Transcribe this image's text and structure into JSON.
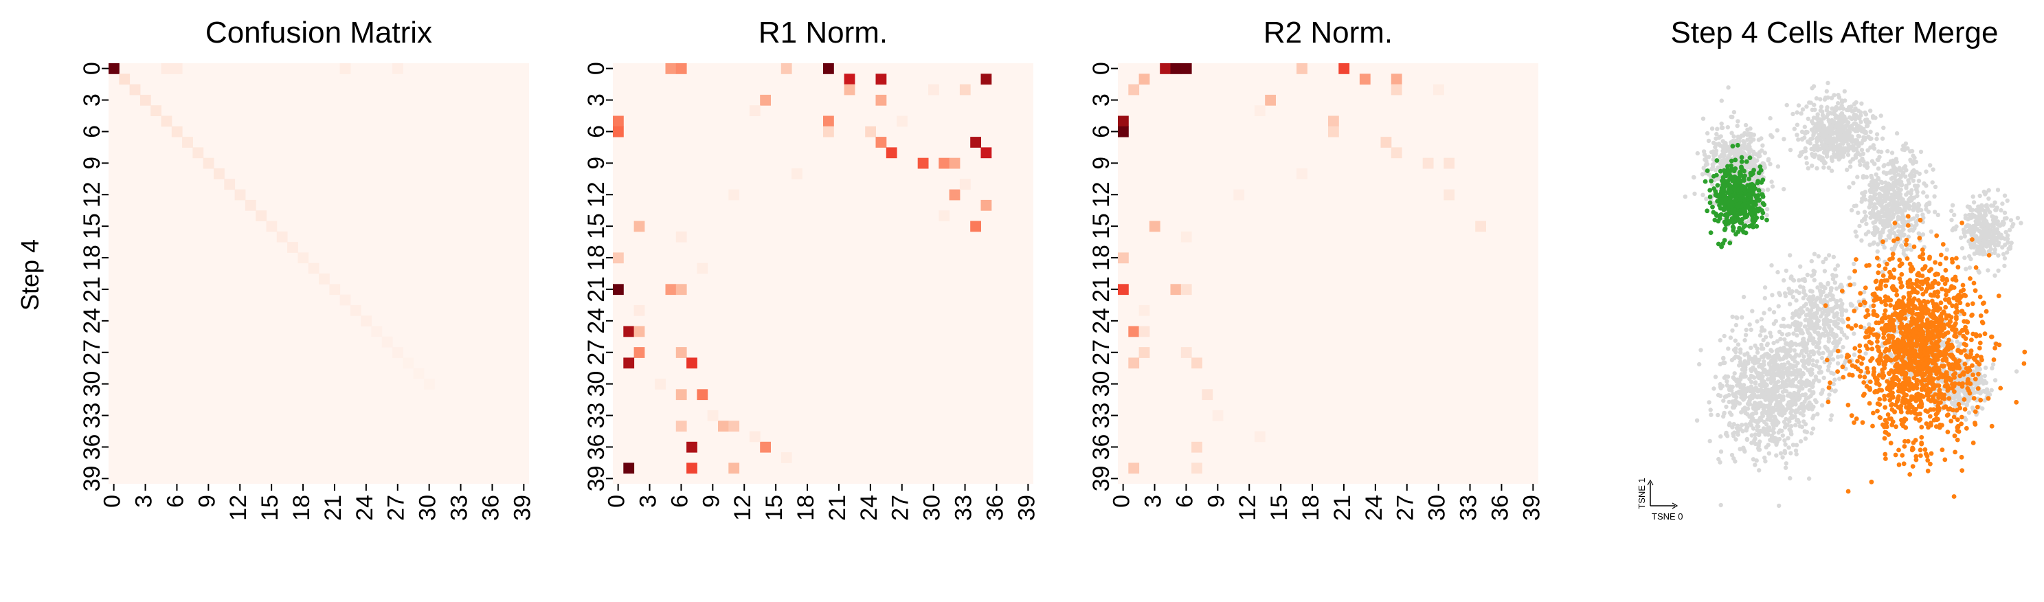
{
  "figure": {
    "ylabel": "Step 4"
  },
  "chart_data": [
    {
      "type": "heatmap",
      "title": "Confusion Matrix",
      "xlabel": "",
      "ylabel": "Step 4",
      "x_ticks": [
        "0",
        "3",
        "6",
        "9",
        "12",
        "15",
        "18",
        "21",
        "24",
        "27",
        "30",
        "33",
        "36",
        "39"
      ],
      "y_ticks": [
        "0",
        "3",
        "6",
        "9",
        "12",
        "15",
        "18",
        "21",
        "24",
        "27",
        "30",
        "33",
        "36",
        "39"
      ],
      "n_rows": 40,
      "n_cols": 40,
      "colormap": "Reds",
      "vmax": 1,
      "cells": [
        [
          0,
          0,
          1.0
        ],
        [
          1,
          1,
          0.12
        ],
        [
          2,
          2,
          0.1
        ],
        [
          3,
          3,
          0.1
        ],
        [
          4,
          4,
          0.09
        ],
        [
          5,
          5,
          0.09
        ],
        [
          6,
          6,
          0.09
        ],
        [
          7,
          7,
          0.08
        ],
        [
          8,
          8,
          0.08
        ],
        [
          9,
          9,
          0.08
        ],
        [
          10,
          10,
          0.08
        ],
        [
          11,
          11,
          0.07
        ],
        [
          12,
          12,
          0.07
        ],
        [
          13,
          13,
          0.07
        ],
        [
          14,
          14,
          0.07
        ],
        [
          15,
          15,
          0.06
        ],
        [
          16,
          16,
          0.06
        ],
        [
          17,
          17,
          0.06
        ],
        [
          18,
          18,
          0.05
        ],
        [
          19,
          19,
          0.05
        ],
        [
          20,
          20,
          0.05
        ],
        [
          21,
          21,
          0.05
        ],
        [
          22,
          22,
          0.04
        ],
        [
          23,
          23,
          0.04
        ],
        [
          24,
          24,
          0.04
        ],
        [
          25,
          25,
          0.03
        ],
        [
          26,
          26,
          0.03
        ],
        [
          27,
          27,
          0.03
        ],
        [
          28,
          28,
          0.02
        ],
        [
          29,
          29,
          0.02
        ],
        [
          30,
          30,
          0.02
        ],
        [
          0,
          5,
          0.06
        ],
        [
          0,
          6,
          0.06
        ],
        [
          0,
          22,
          0.05
        ],
        [
          0,
          27,
          0.04
        ]
      ]
    },
    {
      "type": "heatmap",
      "title": "R1 Norm.",
      "x_ticks": [
        "0",
        "3",
        "6",
        "9",
        "12",
        "15",
        "18",
        "21",
        "24",
        "27",
        "30",
        "33",
        "36",
        "39"
      ],
      "y_ticks": [
        "0",
        "3",
        "6",
        "9",
        "12",
        "15",
        "18",
        "21",
        "24",
        "27",
        "30",
        "33",
        "36",
        "39"
      ],
      "n_rows": 40,
      "n_cols": 40,
      "colormap": "Reds",
      "vmax": 1,
      "cells": [
        [
          0,
          5,
          0.35
        ],
        [
          0,
          6,
          0.4
        ],
        [
          0,
          16,
          0.2
        ],
        [
          0,
          20,
          1.0
        ],
        [
          1,
          22,
          0.75
        ],
        [
          1,
          25,
          0.8
        ],
        [
          1,
          35,
          0.9
        ],
        [
          2,
          22,
          0.25
        ],
        [
          2,
          33,
          0.15
        ],
        [
          3,
          14,
          0.3
        ],
        [
          3,
          25,
          0.3
        ],
        [
          5,
          0,
          0.45
        ],
        [
          5,
          20,
          0.4
        ],
        [
          6,
          0,
          0.5
        ],
        [
          6,
          20,
          0.15
        ],
        [
          6,
          24,
          0.15
        ],
        [
          7,
          25,
          0.4
        ],
        [
          7,
          34,
          0.85
        ],
        [
          8,
          26,
          0.6
        ],
        [
          8,
          35,
          0.75
        ],
        [
          9,
          29,
          0.55
        ],
        [
          9,
          31,
          0.4
        ],
        [
          9,
          32,
          0.3
        ],
        [
          12,
          32,
          0.35
        ],
        [
          13,
          35,
          0.3
        ],
        [
          15,
          2,
          0.25
        ],
        [
          15,
          34,
          0.45
        ],
        [
          18,
          0,
          0.2
        ],
        [
          21,
          0,
          1.0
        ],
        [
          21,
          5,
          0.35
        ],
        [
          21,
          6,
          0.25
        ],
        [
          25,
          1,
          0.85
        ],
        [
          25,
          2,
          0.25
        ],
        [
          27,
          2,
          0.4
        ],
        [
          27,
          6,
          0.25
        ],
        [
          28,
          1,
          0.85
        ],
        [
          28,
          7,
          0.65
        ],
        [
          31,
          6,
          0.25
        ],
        [
          31,
          8,
          0.45
        ],
        [
          34,
          6,
          0.2
        ],
        [
          34,
          10,
          0.25
        ],
        [
          34,
          11,
          0.2
        ],
        [
          36,
          14,
          0.4
        ],
        [
          36,
          7,
          0.85
        ],
        [
          38,
          1,
          1.0
        ],
        [
          38,
          7,
          0.6
        ],
        [
          38,
          11,
          0.25
        ],
        [
          4,
          13,
          0.06
        ],
        [
          10,
          17,
          0.05
        ],
        [
          12,
          11,
          0.05
        ],
        [
          16,
          6,
          0.06
        ],
        [
          19,
          8,
          0.05
        ],
        [
          23,
          2,
          0.06
        ],
        [
          30,
          4,
          0.05
        ],
        [
          33,
          9,
          0.05
        ],
        [
          35,
          13,
          0.06
        ],
        [
          37,
          16,
          0.05
        ],
        [
          2,
          30,
          0.06
        ],
        [
          5,
          27,
          0.05
        ],
        [
          11,
          33,
          0.06
        ],
        [
          14,
          31,
          0.05
        ]
      ]
    },
    {
      "type": "heatmap",
      "title": "R2 Norm.",
      "x_ticks": [
        "0",
        "3",
        "6",
        "9",
        "12",
        "15",
        "18",
        "21",
        "24",
        "27",
        "30",
        "33",
        "36",
        "39"
      ],
      "y_ticks": [
        "0",
        "3",
        "6",
        "9",
        "12",
        "15",
        "18",
        "21",
        "24",
        "27",
        "30",
        "33",
        "36",
        "39"
      ],
      "n_rows": 40,
      "n_cols": 40,
      "colormap": "Reds",
      "vmax": 1,
      "cells": [
        [
          0,
          4,
          0.85
        ],
        [
          0,
          5,
          1.0
        ],
        [
          0,
          6,
          1.0
        ],
        [
          0,
          17,
          0.2
        ],
        [
          0,
          21,
          0.6
        ],
        [
          1,
          2,
          0.25
        ],
        [
          1,
          23,
          0.35
        ],
        [
          1,
          26,
          0.3
        ],
        [
          2,
          1,
          0.2
        ],
        [
          2,
          26,
          0.15
        ],
        [
          3,
          14,
          0.25
        ],
        [
          5,
          0,
          0.9
        ],
        [
          5,
          20,
          0.2
        ],
        [
          6,
          0,
          1.0
        ],
        [
          6,
          20,
          0.15
        ],
        [
          7,
          25,
          0.15
        ],
        [
          8,
          26,
          0.12
        ],
        [
          9,
          29,
          0.1
        ],
        [
          9,
          31,
          0.1
        ],
        [
          12,
          31,
          0.08
        ],
        [
          15,
          3,
          0.25
        ],
        [
          15,
          34,
          0.1
        ],
        [
          18,
          0,
          0.2
        ],
        [
          21,
          0,
          0.6
        ],
        [
          21,
          5,
          0.25
        ],
        [
          21,
          6,
          0.12
        ],
        [
          25,
          1,
          0.4
        ],
        [
          25,
          2,
          0.1
        ],
        [
          27,
          2,
          0.15
        ],
        [
          27,
          6,
          0.1
        ],
        [
          28,
          1,
          0.2
        ],
        [
          28,
          7,
          0.15
        ],
        [
          31,
          8,
          0.1
        ],
        [
          36,
          7,
          0.15
        ],
        [
          38,
          1,
          0.2
        ],
        [
          38,
          7,
          0.12
        ],
        [
          4,
          13,
          0.04
        ],
        [
          10,
          17,
          0.04
        ],
        [
          12,
          11,
          0.04
        ],
        [
          16,
          6,
          0.05
        ],
        [
          23,
          2,
          0.05
        ],
        [
          33,
          9,
          0.04
        ],
        [
          35,
          13,
          0.04
        ],
        [
          2,
          30,
          0.05
        ]
      ]
    },
    {
      "type": "scatter",
      "title": "Step 4 Cells After Merge",
      "xlabel": "TSNE 0",
      "ylabel": "TSNE 1",
      "series": [
        {
          "color": "#d9d9d9",
          "clusters": [
            [
              0.28,
              0.22,
              0.06,
              0.08,
              700
            ],
            [
              0.52,
              0.13,
              0.07,
              0.06,
              500
            ],
            [
              0.88,
              0.35,
              0.05,
              0.06,
              300
            ],
            [
              0.72,
              0.62,
              0.06,
              0.06,
              400
            ],
            [
              0.36,
              0.72,
              0.1,
              0.12,
              900
            ],
            [
              0.48,
              0.55,
              0.08,
              0.1,
              400
            ],
            [
              0.83,
              0.7,
              0.05,
              0.05,
              300
            ],
            [
              0.66,
              0.29,
              0.07,
              0.09,
              500
            ]
          ]
        },
        {
          "color": "#2ca02c",
          "clusters": [
            [
              0.28,
              0.28,
              0.05,
              0.06,
              450
            ]
          ]
        },
        {
          "color": "#ff7f0e",
          "clusters": [
            [
              0.72,
              0.62,
              0.12,
              0.17,
              1400
            ]
          ]
        }
      ]
    }
  ]
}
